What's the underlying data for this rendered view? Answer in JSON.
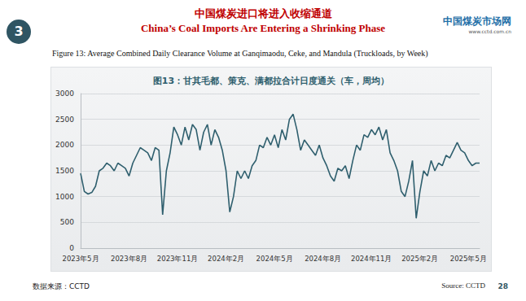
{
  "page": {
    "section_number": 3,
    "heading_zh": "中国煤炭进口将进入收缩通道",
    "heading_en": "China’s Coal Imports Are Entering a Shrinking Phase",
    "logo_text": "中国煤炭市场网",
    "logo_url": "www.cctd.com.cn",
    "figure_caption": "Figure 13: Average Combined Daily Clearance Volume at Ganqimaodu, Ceke, and Mandula (Truckloads, by Week)",
    "source_zh": "数据来源：CCTD",
    "source_en": "Source: CCTD",
    "page_number": 28
  },
  "chart_data": {
    "type": "line",
    "title": "图13：甘其毛都、策克、满都拉合计日度通关（车，周均）",
    "categories": [
      "2023年5月",
      null,
      null,
      null,
      null,
      null,
      null,
      null,
      null,
      null,
      null,
      null,
      null,
      "2023年8月",
      null,
      null,
      null,
      null,
      null,
      null,
      null,
      null,
      null,
      null,
      null,
      null,
      "2023年11月",
      null,
      null,
      null,
      null,
      null,
      null,
      null,
      null,
      null,
      null,
      null,
      null,
      "2024年2月",
      null,
      null,
      null,
      null,
      null,
      null,
      null,
      null,
      null,
      null,
      null,
      null,
      "2024年5月",
      null,
      null,
      null,
      null,
      null,
      null,
      null,
      null,
      null,
      null,
      null,
      null,
      "2024年8月",
      null,
      null,
      null,
      null,
      null,
      null,
      null,
      null,
      null,
      null,
      null,
      null,
      "2024年11月",
      null,
      null,
      null,
      null,
      null,
      null,
      null,
      null,
      null,
      null,
      null,
      null,
      "2025年2月",
      null,
      null,
      null,
      null,
      null,
      null,
      null,
      null,
      null,
      null,
      null,
      null,
      "2025年5月",
      null,
      null,
      null
    ],
    "values": [
      1450,
      1100,
      1050,
      1080,
      1200,
      1500,
      1550,
      1650,
      1600,
      1500,
      1650,
      1600,
      1550,
      1400,
      1650,
      1800,
      1950,
      1900,
      1850,
      1700,
      1950,
      1900,
      650,
      1500,
      1850,
      2350,
      2200,
      2000,
      2350,
      2100,
      2400,
      2300,
      1900,
      2250,
      2400,
      2000,
      2300,
      2150,
      1900,
      1500,
      700,
      1000,
      1500,
      1350,
      1500,
      1350,
      1600,
      1700,
      2000,
      1950,
      2150,
      2000,
      2200,
      1950,
      2300,
      2100,
      2500,
      2600,
      2300,
      1900,
      2100,
      2000,
      1900,
      1800,
      2000,
      1750,
      1600,
      1400,
      1300,
      1550,
      1500,
      1600,
      1350,
      1700,
      2000,
      1900,
      2200,
      2150,
      2300,
      2200,
      2350,
      2100,
      2300,
      1850,
      1700,
      1500,
      1100,
      1000,
      1300,
      1700,
      580,
      1100,
      1500,
      1400,
      1700,
      1500,
      1650,
      1600,
      1800,
      1750,
      1900,
      2050,
      1900,
      1850,
      1700,
      1600,
      1650,
      1650
    ],
    "color": "#2f5f6e",
    "ylim": [
      0,
      3000
    ],
    "yticks": [
      0,
      500,
      1000,
      1500,
      2000,
      2500,
      3000
    ],
    "grid": true
  }
}
